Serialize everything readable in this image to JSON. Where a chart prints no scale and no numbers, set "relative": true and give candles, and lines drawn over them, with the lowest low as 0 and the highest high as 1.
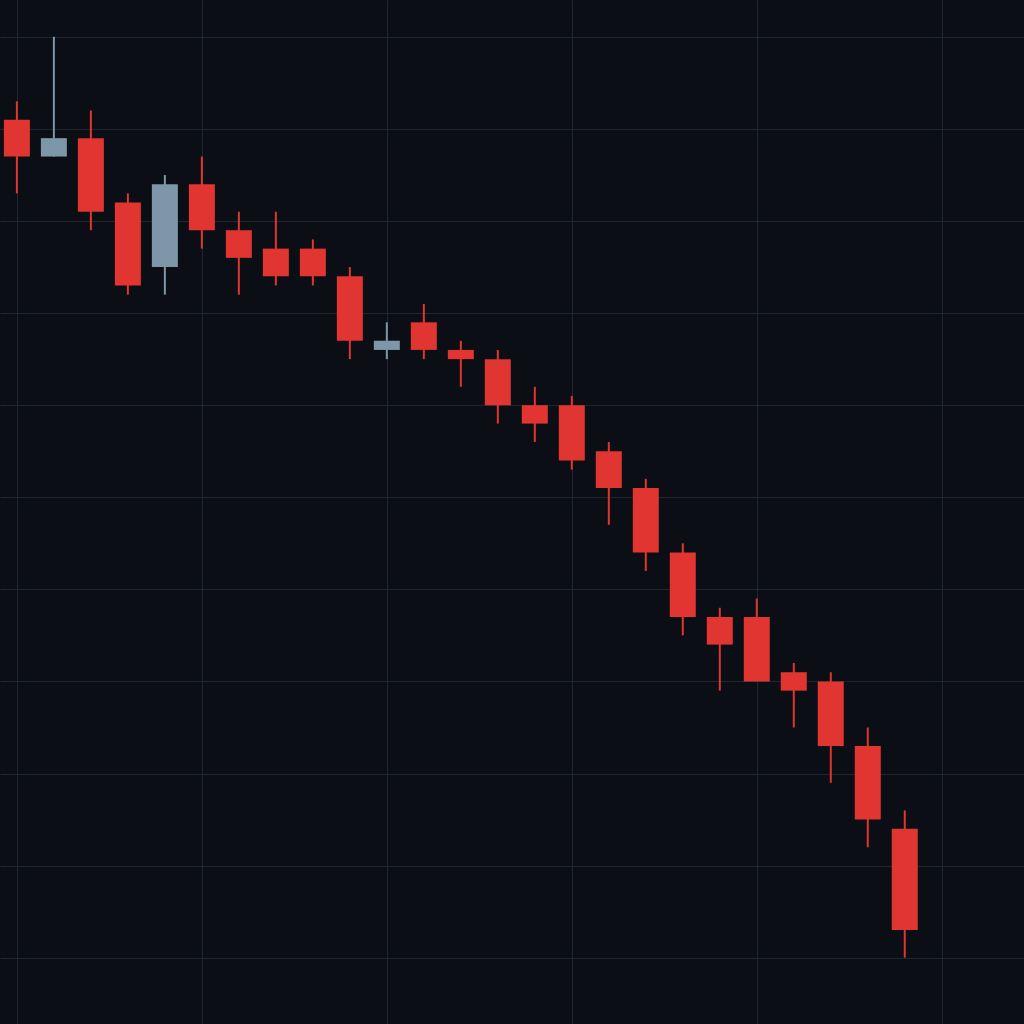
{
  "chart_data": {
    "type": "candlestick",
    "relative": true,
    "grid": true,
    "tick_labels": false,
    "categories": [
      null,
      null,
      null,
      null,
      null,
      null,
      null,
      null,
      null,
      null,
      null,
      null,
      null,
      null,
      null,
      null,
      null,
      null,
      null,
      null,
      null,
      null,
      null,
      null,
      null
    ],
    "ohlc": [
      [
        0.91,
        0.93,
        0.83,
        0.87
      ],
      [
        0.87,
        1.0,
        0.87,
        0.89
      ],
      [
        0.89,
        0.92,
        0.79,
        0.81
      ],
      [
        0.82,
        0.83,
        0.72,
        0.73
      ],
      [
        0.75,
        0.85,
        0.72,
        0.84
      ],
      [
        0.84,
        0.87,
        0.77,
        0.79
      ],
      [
        0.79,
        0.81,
        0.72,
        0.76
      ],
      [
        0.77,
        0.81,
        0.73,
        0.74
      ],
      [
        0.77,
        0.78,
        0.73,
        0.74
      ],
      [
        0.74,
        0.75,
        0.65,
        0.67
      ],
      [
        0.66,
        0.69,
        0.65,
        0.67
      ],
      [
        0.69,
        0.71,
        0.65,
        0.66
      ],
      [
        0.66,
        0.67,
        0.62,
        0.65
      ],
      [
        0.65,
        0.66,
        0.58,
        0.6
      ],
      [
        0.6,
        0.62,
        0.56,
        0.58
      ],
      [
        0.6,
        0.61,
        0.53,
        0.54
      ],
      [
        0.55,
        0.56,
        0.47,
        0.51
      ],
      [
        0.51,
        0.52,
        0.42,
        0.44
      ],
      [
        0.44,
        0.45,
        0.35,
        0.37
      ],
      [
        0.37,
        0.38,
        0.29,
        0.34
      ],
      [
        0.37,
        0.39,
        0.3,
        0.3
      ],
      [
        0.31,
        0.32,
        0.25,
        0.29
      ],
      [
        0.3,
        0.31,
        0.19,
        0.23
      ],
      [
        0.23,
        0.25,
        0.12,
        0.15
      ],
      [
        0.14,
        0.16,
        0.0,
        0.03
      ]
    ],
    "colors": [
      "#e03530",
      "#7d97a8",
      "#e03530",
      "#e03530",
      "#7d97a8",
      "#e03530",
      "#e03530",
      "#e03530",
      "#e03530",
      "#e03530",
      "#7d97a8",
      "#e03530",
      "#e03530",
      "#e03530",
      "#e03530",
      "#e03530",
      "#e03530",
      "#e03530",
      "#e03530",
      "#e03530",
      "#e03530",
      "#e03530",
      "#e03530",
      "#e03530",
      "#e03530"
    ]
  }
}
